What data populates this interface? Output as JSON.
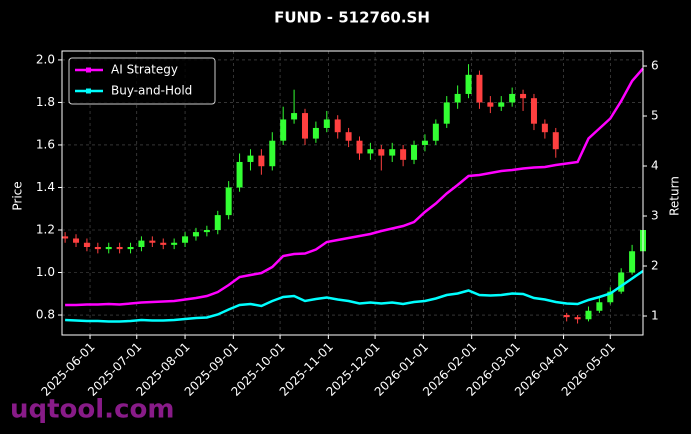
{
  "chart_data": {
    "type": "candlestick",
    "title": "FUND - 512760.SH",
    "ylabel": "Price",
    "y2label": "Return",
    "watermark": "uqtool.com",
    "x": [
      "2025-05-16",
      "2025-05-23",
      "2025-05-30",
      "2025-06-06",
      "2025-06-13",
      "2025-06-20",
      "2025-06-27",
      "2025-07-04",
      "2025-07-11",
      "2025-07-18",
      "2025-07-25",
      "2025-08-01",
      "2025-08-08",
      "2025-08-15",
      "2025-08-22",
      "2025-08-29",
      "2025-09-05",
      "2025-09-12",
      "2025-09-19",
      "2025-09-26",
      "2025-10-03",
      "2025-10-10",
      "2025-10-17",
      "2025-10-24",
      "2025-10-31",
      "2025-11-07",
      "2025-11-14",
      "2025-11-21",
      "2025-11-28",
      "2025-12-05",
      "2025-12-12",
      "2025-12-19",
      "2025-12-26",
      "2026-01-02",
      "2026-01-09",
      "2026-01-16",
      "2026-01-23",
      "2026-01-30",
      "2026-02-06",
      "2026-02-13",
      "2026-02-20",
      "2026-02-27",
      "2026-03-06",
      "2026-03-13",
      "2026-03-20",
      "2026-03-27",
      "2026-04-03",
      "2026-04-10",
      "2026-04-17",
      "2026-04-24",
      "2026-05-01",
      "2026-05-08",
      "2026-05-15",
      "2026-05-22"
    ],
    "open": [
      1.17,
      1.16,
      1.14,
      1.12,
      1.11,
      1.12,
      1.11,
      1.12,
      1.15,
      1.14,
      1.13,
      1.14,
      1.17,
      1.19,
      1.2,
      1.27,
      1.4,
      1.52,
      1.55,
      1.5,
      1.62,
      1.72,
      1.75,
      1.63,
      1.68,
      1.72,
      1.66,
      1.62,
      1.56,
      1.58,
      1.55,
      1.58,
      1.53,
      1.6,
      1.62,
      1.7,
      1.8,
      1.84,
      1.93,
      1.8,
      1.78,
      1.8,
      1.84,
      1.82,
      1.7,
      1.66,
      0.8,
      0.79,
      0.78,
      0.82,
      0.86,
      0.91,
      1.0,
      1.1
    ],
    "high": [
      1.19,
      1.18,
      1.16,
      1.14,
      1.14,
      1.14,
      1.14,
      1.17,
      1.17,
      1.16,
      1.16,
      1.19,
      1.21,
      1.22,
      1.29,
      1.43,
      1.56,
      1.58,
      1.58,
      1.66,
      1.78,
      1.86,
      1.77,
      1.71,
      1.76,
      1.74,
      1.68,
      1.64,
      1.61,
      1.6,
      1.61,
      1.6,
      1.62,
      1.65,
      1.72,
      1.83,
      1.88,
      1.98,
      1.95,
      1.83,
      1.83,
      1.87,
      1.86,
      1.84,
      1.72,
      1.68,
      0.81,
      0.8,
      0.84,
      0.88,
      0.93,
      1.02,
      1.13,
      1.25
    ],
    "low": [
      1.14,
      1.12,
      1.1,
      1.09,
      1.09,
      1.09,
      1.09,
      1.1,
      1.12,
      1.11,
      1.11,
      1.12,
      1.15,
      1.17,
      1.18,
      1.25,
      1.38,
      1.48,
      1.46,
      1.48,
      1.6,
      1.7,
      1.6,
      1.61,
      1.66,
      1.63,
      1.59,
      1.53,
      1.53,
      1.48,
      1.52,
      1.5,
      1.51,
      1.57,
      1.6,
      1.68,
      1.77,
      1.82,
      1.77,
      1.75,
      1.76,
      1.78,
      1.76,
      1.67,
      1.63,
      1.54,
      0.77,
      0.76,
      0.77,
      0.81,
      0.85,
      0.9,
      0.99,
      1.08
    ],
    "close": [
      1.16,
      1.14,
      1.12,
      1.11,
      1.12,
      1.11,
      1.12,
      1.15,
      1.14,
      1.13,
      1.14,
      1.17,
      1.19,
      1.2,
      1.27,
      1.4,
      1.52,
      1.55,
      1.5,
      1.62,
      1.72,
      1.75,
      1.63,
      1.68,
      1.72,
      1.66,
      1.62,
      1.56,
      1.58,
      1.55,
      1.58,
      1.53,
      1.6,
      1.62,
      1.7,
      1.8,
      1.84,
      1.93,
      1.8,
      1.78,
      1.8,
      1.84,
      1.82,
      1.7,
      1.66,
      1.58,
      0.79,
      0.78,
      0.82,
      0.86,
      0.91,
      1.0,
      1.1,
      1.2
    ],
    "up_color": "#33ff33",
    "down_color": "#ff4040",
    "series": [
      {
        "name": "AI Strategy",
        "color": "#ff00ff",
        "axis": "y2",
        "values": [
          1.22,
          1.22,
          1.23,
          1.23,
          1.24,
          1.23,
          1.25,
          1.27,
          1.28,
          1.29,
          1.3,
          1.33,
          1.36,
          1.4,
          1.48,
          1.62,
          1.78,
          1.82,
          1.86,
          1.98,
          2.2,
          2.24,
          2.25,
          2.33,
          2.48,
          2.52,
          2.56,
          2.6,
          2.64,
          2.7,
          2.75,
          2.8,
          2.88,
          3.08,
          3.25,
          3.45,
          3.62,
          3.8,
          3.82,
          3.86,
          3.9,
          3.92,
          3.95,
          3.97,
          3.98,
          4.02,
          4.05,
          4.08,
          4.55,
          4.75,
          4.95,
          5.3,
          5.7,
          5.95
        ]
      },
      {
        "name": "Buy-and-Hold",
        "color": "#00ffff",
        "axis": "y2",
        "values": [
          0.92,
          0.91,
          0.9,
          0.9,
          0.89,
          0.89,
          0.9,
          0.92,
          0.91,
          0.91,
          0.92,
          0.94,
          0.96,
          0.97,
          1.03,
          1.13,
          1.22,
          1.24,
          1.2,
          1.3,
          1.38,
          1.4,
          1.3,
          1.34,
          1.37,
          1.33,
          1.3,
          1.25,
          1.27,
          1.25,
          1.27,
          1.24,
          1.28,
          1.3,
          1.35,
          1.42,
          1.45,
          1.51,
          1.42,
          1.41,
          1.42,
          1.45,
          1.44,
          1.36,
          1.33,
          1.28,
          1.25,
          1.24,
          1.32,
          1.38,
          1.45,
          1.6,
          1.75,
          1.9
        ]
      }
    ],
    "xlim": [
      "2025-05-14",
      "2026-05-22"
    ],
    "xticks": [
      "2025-06-01",
      "2025-07-01",
      "2025-08-01",
      "2025-09-01",
      "2025-10-01",
      "2025-11-01",
      "2025-12-01",
      "2026-01-01",
      "2026-02-01",
      "2026-03-01",
      "2026-04-01",
      "2026-05-01"
    ],
    "ylim": [
      0.706,
      2.042
    ],
    "yticks": [
      0.8,
      {
        "value": 1,
        "label": "1.0"
      },
      1.2,
      1.4,
      1.6,
      1.8,
      {
        "value": 2,
        "label": "2.0"
      }
    ],
    "y2lim": [
      0.62,
      6.3
    ],
    "y2ticks": [
      1,
      2,
      3,
      4,
      5,
      6
    ],
    "grid": true,
    "legend": "upper left"
  }
}
